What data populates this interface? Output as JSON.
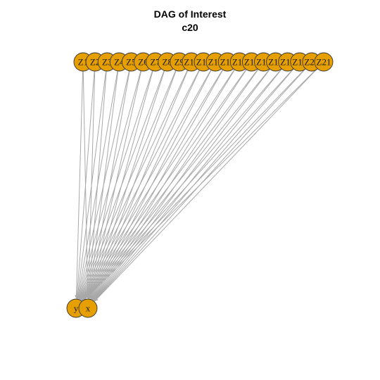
{
  "title": {
    "line1": "DAG of Interest",
    "line2": "c20"
  },
  "node_fill": "#E69F00",
  "edge_color": "#A8A8A8",
  "source_nodes": [
    "Z1",
    "Z2",
    "Z3",
    "Z4",
    "Z5",
    "Z6",
    "Z7",
    "Z8",
    "Z9",
    "Z10",
    "Z11",
    "Z12",
    "Z13",
    "Z14",
    "Z15",
    "Z16",
    "Z17",
    "Z18",
    "Z19",
    "Z20",
    "Z21"
  ],
  "target_nodes": [
    "y",
    "x"
  ],
  "edges": [
    [
      "Z1",
      "y"
    ],
    [
      "Z1",
      "x"
    ],
    [
      "Z2",
      "y"
    ],
    [
      "Z2",
      "x"
    ],
    [
      "Z3",
      "y"
    ],
    [
      "Z3",
      "x"
    ],
    [
      "Z4",
      "y"
    ],
    [
      "Z4",
      "x"
    ],
    [
      "Z5",
      "y"
    ],
    [
      "Z5",
      "x"
    ],
    [
      "Z6",
      "y"
    ],
    [
      "Z6",
      "x"
    ],
    [
      "Z7",
      "y"
    ],
    [
      "Z7",
      "x"
    ],
    [
      "Z8",
      "y"
    ],
    [
      "Z8",
      "x"
    ],
    [
      "Z9",
      "y"
    ],
    [
      "Z9",
      "x"
    ],
    [
      "Z10",
      "y"
    ],
    [
      "Z10",
      "x"
    ],
    [
      "Z11",
      "y"
    ],
    [
      "Z11",
      "x"
    ],
    [
      "Z12",
      "y"
    ],
    [
      "Z12",
      "x"
    ],
    [
      "Z13",
      "y"
    ],
    [
      "Z13",
      "x"
    ],
    [
      "Z14",
      "y"
    ],
    [
      "Z14",
      "x"
    ],
    [
      "Z15",
      "y"
    ],
    [
      "Z15",
      "x"
    ],
    [
      "Z16",
      "y"
    ],
    [
      "Z16",
      "x"
    ],
    [
      "Z17",
      "y"
    ],
    [
      "Z17",
      "x"
    ],
    [
      "Z18",
      "y"
    ],
    [
      "Z18",
      "x"
    ],
    [
      "Z19",
      "y"
    ],
    [
      "Z19",
      "x"
    ],
    [
      "Z20",
      "y"
    ],
    [
      "Z20",
      "x"
    ],
    [
      "Z21",
      "y"
    ],
    [
      "Z21",
      "x"
    ]
  ]
}
